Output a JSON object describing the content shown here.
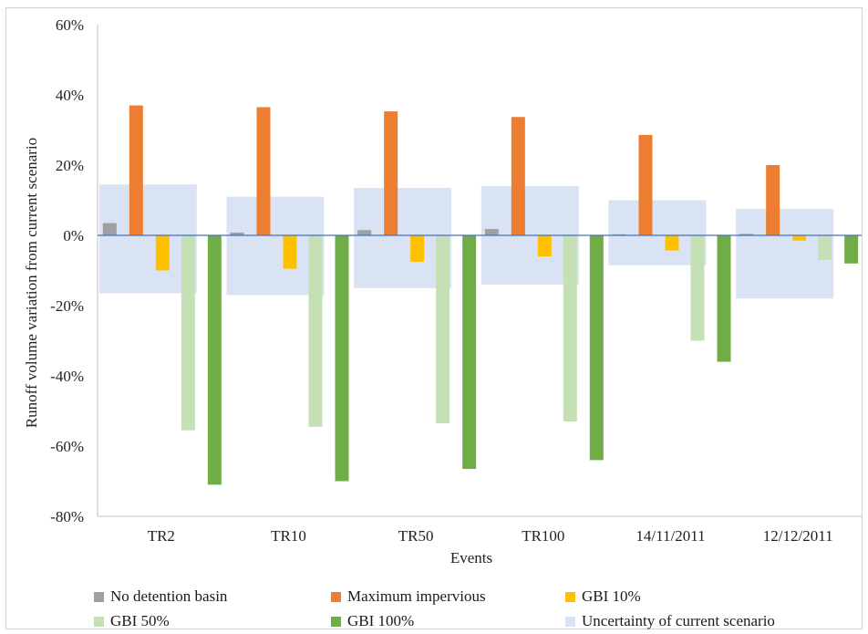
{
  "chart_data": {
    "type": "bar",
    "title": "",
    "xlabel": "Events",
    "ylabel": "Runoff volume variation from current scenario",
    "ylim": [
      -80,
      60
    ],
    "yticks": [
      -80,
      -60,
      -40,
      -20,
      0,
      20,
      40,
      60
    ],
    "ytick_labels": [
      "-80%",
      "-60%",
      "-40%",
      "-20%",
      "0%",
      "20%",
      "40%",
      "60%"
    ],
    "categories": [
      "TR2",
      "TR10",
      "TR50",
      "TR100",
      "14/11/2011",
      "12/12/2011"
    ],
    "series": [
      {
        "name": "No detention basin",
        "color": "#a0a0a0",
        "values": [
          3.5,
          0.8,
          1.5,
          1.8,
          0.3,
          0.4
        ]
      },
      {
        "name": "Maximum impervious",
        "color": "#ed7d31",
        "values": [
          37,
          36.5,
          35.3,
          33.7,
          28.6,
          20
        ]
      },
      {
        "name": "GBI 10%",
        "color": "#ffc000",
        "values": [
          -10,
          -9.5,
          -7.5,
          -6,
          -4.3,
          -1.5
        ]
      },
      {
        "name": "GBI 50%",
        "color": "#c5e0b4",
        "values": [
          -55.5,
          -54.5,
          -53.5,
          -53,
          -30,
          -7
        ]
      },
      {
        "name": "GBI 100%",
        "color": "#70ad47",
        "values": [
          -71,
          -70,
          -66.5,
          -64,
          -36,
          -8
        ]
      }
    ],
    "uncertainty": {
      "name": "Uncertainty of current scenario",
      "color": "#dae3f3",
      "ranges": [
        [
          -16.5,
          14.5
        ],
        [
          -17,
          11
        ],
        [
          -15,
          13.5
        ],
        [
          -14,
          14
        ],
        [
          -8.5,
          10
        ],
        [
          -18,
          7.5
        ]
      ]
    },
    "grid": false,
    "legend_position": "bottom"
  }
}
